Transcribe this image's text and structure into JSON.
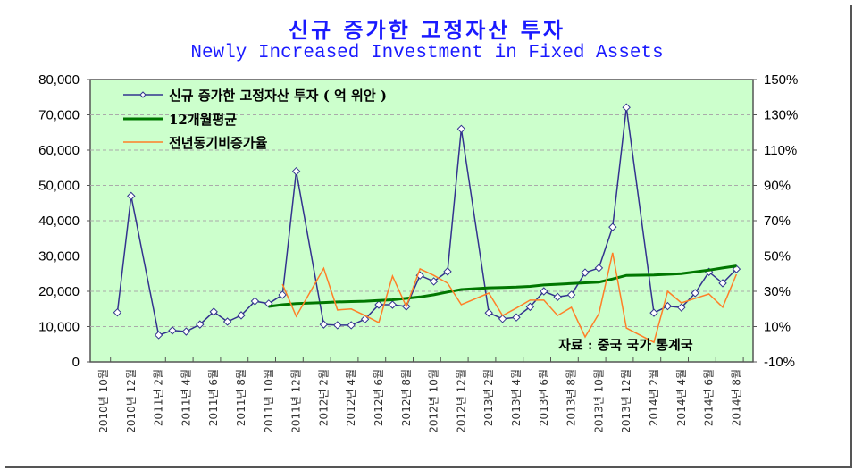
{
  "chart_data": {
    "type": "line",
    "title": "신규 증가한 고정자산 투자",
    "subtitle": "Newly Increased Investment in Fixed Assets",
    "source": "자료 : 중국 국가 통계국",
    "legend_position": "top-left",
    "grid": true,
    "y_left": {
      "min": 0,
      "max": 80000,
      "ticks": [
        "0",
        "10,000",
        "20,000",
        "30,000",
        "40,000",
        "50,000",
        "60,000",
        "70,000",
        "80,000"
      ]
    },
    "y_right": {
      "min": -10,
      "max": 150,
      "ticks": [
        "-10%",
        "10%",
        "30%",
        "50%",
        "70%",
        "90%",
        "110%",
        "130%",
        "150%"
      ]
    },
    "x": [
      "2010-10",
      "2010-11",
      "2010-12",
      "2011-1",
      "2011-2",
      "2011-3",
      "2011-4",
      "2011-5",
      "2011-6",
      "2011-7",
      "2011-8",
      "2011-9",
      "2011-10",
      "2011-11",
      "2011-12",
      "2012-1",
      "2012-2",
      "2012-3",
      "2012-4",
      "2012-5",
      "2012-6",
      "2012-7",
      "2012-8",
      "2012-9",
      "2012-10",
      "2012-11",
      "2012-12",
      "2013-1",
      "2013-2",
      "2013-3",
      "2013-4",
      "2013-5",
      "2013-6",
      "2013-7",
      "2013-8",
      "2013-9",
      "2013-10",
      "2013-11",
      "2013-12",
      "2014-1",
      "2014-2",
      "2014-3",
      "2014-4",
      "2014-5",
      "2014-6",
      "2014-7",
      "2014-8"
    ],
    "x_tick_labels": [
      "2010년 10월",
      "2010년 12월",
      "2011년 2월",
      "2011년 4월",
      "2011년 6월",
      "2011년 8월",
      "2011년 10월",
      "2011년 12월",
      "2012년 2월",
      "2012년 4월",
      "2012년 6월",
      "2012년 8월",
      "2012년 10월",
      "2012년 12월",
      "2013년 2월",
      "2013년 4월",
      "2013년 6월",
      "2013년 8월",
      "2013년 10월",
      "2013년 12월",
      "2014년 2월",
      "2014년 4월",
      "2014년 6월",
      "2014년 8월"
    ],
    "series": [
      {
        "name": "신규 증가한 고정자산 투자 ( 억 위안 )",
        "axis": "left",
        "color": "#33338f",
        "values": [
          null,
          14000,
          47000,
          null,
          7600,
          8900,
          8600,
          10600,
          14200,
          11400,
          13200,
          17200,
          16500,
          19000,
          54000,
          null,
          10600,
          10400,
          10400,
          12100,
          16200,
          16200,
          15700,
          24500,
          22800,
          25600,
          66000,
          null,
          13900,
          12200,
          12600,
          15600,
          20000,
          18400,
          19000,
          25300,
          26600,
          38200,
          72100,
          null,
          13900,
          15800,
          15400,
          19500,
          25500,
          22300,
          26300
        ]
      },
      {
        "name": "12개월평균",
        "axis": "left",
        "color": "#007700",
        "values": [
          null,
          null,
          null,
          null,
          null,
          null,
          null,
          null,
          null,
          null,
          null,
          null,
          15700,
          16200,
          16500,
          null,
          16800,
          17000,
          17100,
          17200,
          17400,
          17600,
          18000,
          18400,
          19000,
          19800,
          20500,
          null,
          21000,
          21100,
          21200,
          21400,
          21800,
          22000,
          22200,
          22400,
          22600,
          23500,
          24500,
          null,
          24600,
          24800,
          25000,
          25500,
          26000,
          26600,
          27200
        ]
      },
      {
        "name": "전년동기비증가율",
        "axis": "right",
        "color": "#ff7f27",
        "values": [
          null,
          null,
          null,
          null,
          null,
          null,
          null,
          null,
          null,
          null,
          null,
          null,
          null,
          34,
          15.8,
          null,
          43,
          19.4,
          20,
          16.3,
          12.3,
          38.6,
          21.4,
          42.7,
          39,
          34.6,
          22.4,
          null,
          29,
          16.3,
          20.5,
          25,
          25,
          16.3,
          20.9,
          4.2,
          17.3,
          51.8,
          9.2,
          null,
          1.1,
          30,
          23.4,
          26,
          28.5,
          21,
          39.6
        ]
      }
    ]
  }
}
